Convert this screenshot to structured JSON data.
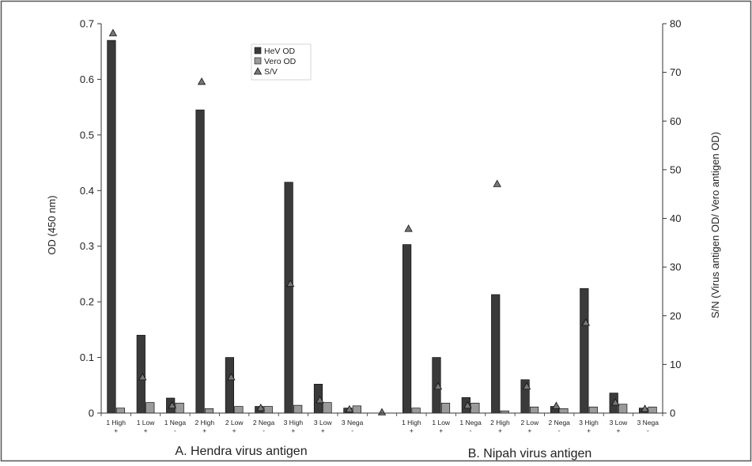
{
  "chart_data": {
    "type": "bar",
    "ylabel": "OD (450 nm)",
    "y2label": "S/N (Virus antigen OD/ Vero antigen OD)",
    "ylim": [
      0,
      0.7
    ],
    "y2lim": [
      0,
      80
    ],
    "yticks": [
      "0",
      "0.1",
      "0.2",
      "0.3",
      "0.4",
      "0.5",
      "0.6",
      "0.7"
    ],
    "y2ticks": [
      "0",
      "10",
      "20",
      "30",
      "40",
      "50",
      "60",
      "70",
      "80"
    ],
    "legend": {
      "position": "top-center",
      "entries": [
        "HeV OD",
        "Vero OD",
        "S/V"
      ]
    },
    "categories": [
      {
        "label": "1 High",
        "sign": "+"
      },
      {
        "label": "1 Low",
        "sign": "+"
      },
      {
        "label": "1 Nega",
        "sign": "-"
      },
      {
        "label": "2 High",
        "sign": "+"
      },
      {
        "label": "2 Low",
        "sign": "+"
      },
      {
        "label": "2 Nega",
        "sign": "-"
      },
      {
        "label": "3 High",
        "sign": "+"
      },
      {
        "label": "3 Low",
        "sign": "+"
      },
      {
        "label": "3 Nega",
        "sign": "-"
      },
      {
        "label": "",
        "sign": ""
      },
      {
        "label": "1 High",
        "sign": "+"
      },
      {
        "label": "1 Low",
        "sign": "+"
      },
      {
        "label": "1 Nega",
        "sign": "-"
      },
      {
        "label": "2 High",
        "sign": "+"
      },
      {
        "label": "2 Low",
        "sign": "+"
      },
      {
        "label": "2 Nega",
        "sign": "-"
      },
      {
        "label": "3 High",
        "sign": "+"
      },
      {
        "label": "3 Low",
        "sign": "+"
      },
      {
        "label": "3 Nega",
        "sign": "-"
      }
    ],
    "series": [
      {
        "name": "HeV OD",
        "axis": "left",
        "color": "#3a3a3a",
        "values": [
          0.67,
          0.14,
          0.027,
          0.545,
          0.1,
          0.012,
          0.415,
          0.052,
          0.009,
          null,
          0.303,
          0.1,
          0.028,
          0.213,
          0.06,
          0.012,
          0.224,
          0.036,
          0.009
        ]
      },
      {
        "name": "Vero OD",
        "axis": "left",
        "color": "#9a9a9a",
        "values": [
          0.009,
          0.019,
          0.018,
          0.008,
          0.012,
          0.012,
          0.014,
          0.019,
          0.013,
          null,
          0.009,
          0.018,
          0.018,
          0.004,
          0.011,
          0.008,
          0.011,
          0.016,
          0.011
        ]
      },
      {
        "name": "S/V",
        "axis": "right",
        "marker": "triangle",
        "values": [
          78,
          7.3,
          1.5,
          68,
          7.3,
          1,
          26.5,
          2.6,
          0.7,
          0.1,
          37.8,
          5.4,
          1.5,
          47,
          5.4,
          1.4,
          18.5,
          2.1,
          0.8
        ]
      }
    ],
    "panels": [
      "A. Hendra virus antigen",
      "B. Nipah virus antigen"
    ]
  }
}
